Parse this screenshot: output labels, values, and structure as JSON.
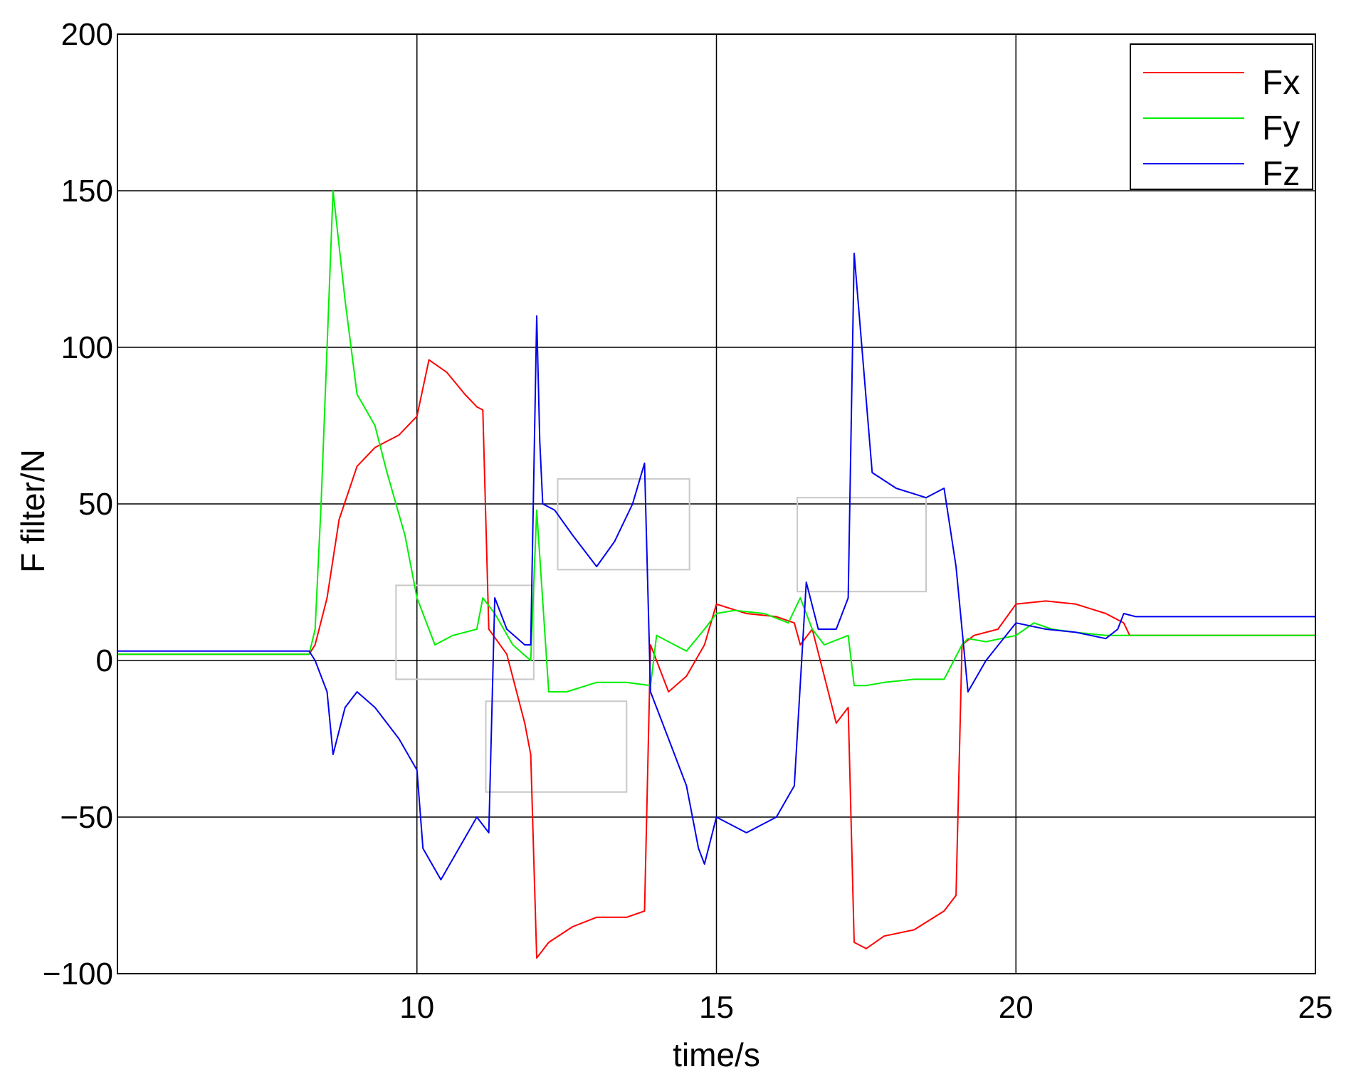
{
  "chart_data": {
    "type": "line",
    "xlabel": "time/s",
    "ylabel": "F filter/N",
    "xlim": [
      5,
      25
    ],
    "ylim": [
      -100,
      200
    ],
    "xticks": [
      10,
      15,
      20,
      25
    ],
    "yticks": [
      -100,
      -50,
      0,
      50,
      100,
      150,
      200
    ],
    "xtick_labels": [
      "10",
      "15",
      "20",
      "25"
    ],
    "ytick_labels": [
      "−100",
      "−50",
      "0",
      "50",
      "100",
      "150",
      "200"
    ],
    "grid": true,
    "legend_position": "top-right",
    "series": [
      {
        "name": "Fx",
        "color": "#ff0000",
        "x": [
          5,
          8.2,
          8.3,
          8.5,
          8.7,
          9.0,
          9.3,
          9.7,
          10.0,
          10.2,
          10.5,
          10.8,
          11.0,
          11.1,
          11.2,
          11.5,
          11.8,
          11.9,
          12.0,
          12.2,
          12.6,
          13.0,
          13.5,
          13.8,
          13.9,
          14.2,
          14.5,
          14.8,
          15.0,
          15.5,
          16.0,
          16.3,
          16.4,
          16.6,
          16.8,
          17.0,
          17.2,
          17.3,
          17.5,
          17.8,
          18.3,
          18.8,
          19.0,
          19.1,
          19.3,
          19.7,
          20.0,
          20.5,
          21.0,
          21.5,
          21.8,
          21.9,
          22.5,
          25
        ],
        "y": [
          2,
          2,
          5,
          20,
          45,
          62,
          68,
          72,
          78,
          96,
          92,
          85,
          81,
          80,
          10,
          2,
          -20,
          -30,
          -95,
          -90,
          -85,
          -82,
          -82,
          -80,
          5,
          -10,
          -5,
          5,
          18,
          15,
          14,
          12,
          5,
          10,
          -5,
          -20,
          -15,
          -90,
          -92,
          -88,
          -86,
          -80,
          -75,
          5,
          8,
          10,
          18,
          19,
          18,
          15,
          12,
          8,
          8,
          8
        ]
      },
      {
        "name": "Fy",
        "color": "#00ee00",
        "x": [
          5,
          8.2,
          8.3,
          8.4,
          8.6,
          8.8,
          9.0,
          9.3,
          9.5,
          9.8,
          10.0,
          10.3,
          10.6,
          11.0,
          11.1,
          11.3,
          11.6,
          11.9,
          12.0,
          12.2,
          12.5,
          13.0,
          13.5,
          13.9,
          14.0,
          14.3,
          14.5,
          14.8,
          15.0,
          15.3,
          15.8,
          16.2,
          16.4,
          16.6,
          16.8,
          17.2,
          17.3,
          17.5,
          17.8,
          18.3,
          18.8,
          19.1,
          19.2,
          19.5,
          20.0,
          20.3,
          20.6,
          21.0,
          21.5,
          22.0,
          25
        ],
        "y": [
          2,
          2,
          10,
          50,
          150,
          115,
          85,
          75,
          60,
          40,
          20,
          5,
          8,
          10,
          20,
          15,
          5,
          0,
          48,
          -10,
          -10,
          -7,
          -7,
          -8,
          8,
          5,
          3,
          10,
          15,
          16,
          15,
          12,
          20,
          10,
          5,
          8,
          -8,
          -8,
          -7,
          -6,
          -6,
          5,
          7,
          6,
          8,
          12,
          10,
          9,
          8,
          8,
          8
        ]
      },
      {
        "name": "Fz",
        "color": "#0000ee",
        "x": [
          5,
          8.2,
          8.3,
          8.5,
          8.6,
          8.8,
          9.0,
          9.3,
          9.7,
          10.0,
          10.1,
          10.4,
          10.7,
          11.0,
          11.2,
          11.3,
          11.5,
          11.8,
          11.9,
          12.0,
          12.05,
          12.1,
          12.3,
          12.6,
          13.0,
          13.3,
          13.6,
          13.8,
          13.9,
          14.2,
          14.5,
          14.7,
          14.8,
          15.0,
          15.5,
          16.0,
          16.3,
          16.5,
          16.7,
          17.0,
          17.2,
          17.3,
          17.6,
          18.0,
          18.5,
          18.8,
          19.0,
          19.2,
          19.5,
          20.0,
          20.5,
          21.0,
          21.5,
          21.7,
          21.8,
          22.0,
          25
        ],
        "y": [
          3,
          3,
          0,
          -10,
          -30,
          -15,
          -10,
          -15,
          -25,
          -35,
          -60,
          -70,
          -60,
          -50,
          -55,
          20,
          10,
          5,
          5,
          110,
          70,
          50,
          48,
          40,
          30,
          38,
          50,
          63,
          -10,
          -25,
          -40,
          -60,
          -65,
          -50,
          -55,
          -50,
          -40,
          25,
          10,
          10,
          20,
          130,
          60,
          55,
          52,
          55,
          30,
          -10,
          0,
          12,
          10,
          9,
          7,
          10,
          15,
          14,
          14
        ]
      }
    ],
    "annotations": [
      {
        "type": "rectangle",
        "x0": 9.65,
        "x1": 11.95,
        "y0": -6,
        "y1": 24
      },
      {
        "type": "rectangle",
        "x0": 11.15,
        "x1": 13.5,
        "y0": -42,
        "y1": -13
      },
      {
        "type": "rectangle",
        "x0": 12.35,
        "x1": 14.55,
        "y0": 29,
        "y1": 58
      },
      {
        "type": "rectangle",
        "x0": 16.35,
        "x1": 18.5,
        "y0": 22,
        "y1": 52
      }
    ]
  }
}
